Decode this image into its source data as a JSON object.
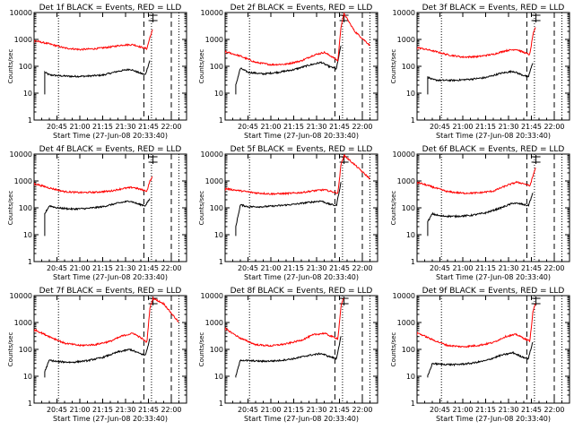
{
  "figure": {
    "colors": {
      "events": "#000000",
      "lld": "#ff0000",
      "background": "#ffffff"
    },
    "x_tick_labels": [
      "20:45",
      "21:00",
      "21:15",
      "21:30",
      "21:45",
      "22:00"
    ],
    "y_tick_labels": [
      "1",
      "10",
      "100",
      "1000",
      "10000"
    ],
    "x_axis_label": "Start Time (27-Jun-08 20:33:40)",
    "y_axis_label": "Counts/sec"
  },
  "chart_data": [
    {
      "type": "line",
      "title": "Det 1f BLACK = Events, RED = LLD",
      "xlabel": "Start Time (27-Jun-08 20:33:40)",
      "ylabel": "Counts/sec",
      "y_scale": "log",
      "ylim": [
        1,
        10000
      ],
      "x_ticks": [
        "20:45",
        "21:00",
        "21:15",
        "21:30",
        "21:45",
        "22:00"
      ],
      "grid": false,
      "series": [
        {
          "name": "Events",
          "color": "#000000",
          "start": "20:37",
          "x": [
            "20:37",
            "20:40",
            "20:45",
            "20:55",
            "21:05",
            "21:15",
            "21:25",
            "21:33",
            "21:38",
            "21:43",
            "21:46"
          ],
          "y": [
            60,
            48,
            45,
            42,
            43,
            47,
            65,
            78,
            60,
            48,
            170
          ]
        },
        {
          "name": "LLD",
          "color": "#ff0000",
          "start": "20:30",
          "x": [
            "20:30",
            "20:40",
            "20:50",
            "21:00",
            "21:10",
            "21:20",
            "21:28",
            "21:35",
            "21:40",
            "21:44",
            "21:46",
            "21:48"
          ],
          "y": [
            900,
            680,
            480,
            420,
            450,
            520,
            620,
            640,
            520,
            450,
            1200,
            2500
          ]
        }
      ],
      "markers": {
        "dotted": [
          "20:46",
          "21:47",
          "22:05"
        ],
        "dashed": [
          "21:42",
          "22:00"
        ],
        "error_bar": "21:48"
      }
    },
    {
      "type": "line",
      "title": "Det 2f BLACK = Events, RED = LLD",
      "xlabel": "Start Time (27-Jun-08 20:33:40)",
      "ylabel": "Counts/sec",
      "y_scale": "log",
      "ylim": [
        1,
        10000
      ],
      "x_ticks": [
        "20:45",
        "21:00",
        "21:15",
        "21:30",
        "21:45",
        "22:00"
      ],
      "grid": false,
      "series": [
        {
          "name": "Events",
          "color": "#000000",
          "start": "20:37",
          "x": [
            "20:37",
            "20:40",
            "20:45",
            "20:55",
            "21:05",
            "21:15",
            "21:25",
            "21:33",
            "21:38",
            "21:43",
            "21:46"
          ],
          "y": [
            20,
            85,
            60,
            52,
            60,
            75,
            110,
            140,
            100,
            80,
            600
          ]
        },
        {
          "name": "LLD",
          "color": "#ff0000",
          "start": "20:30",
          "x": [
            "20:30",
            "20:40",
            "20:50",
            "21:00",
            "21:10",
            "21:20",
            "21:28",
            "21:35",
            "21:40",
            "21:44",
            "21:46",
            "21:48",
            "21:55",
            "22:05"
          ],
          "y": [
            350,
            240,
            140,
            115,
            120,
            160,
            260,
            330,
            230,
            160,
            3000,
            9000,
            2000,
            600
          ]
        }
      ],
      "markers": {
        "dotted": [
          "20:46",
          "21:47",
          "22:05"
        ],
        "dashed": [
          "21:42",
          "22:00"
        ],
        "error_bar": "21:48"
      }
    },
    {
      "type": "line",
      "title": "Det 3f BLACK = Events, RED = LLD",
      "xlabel": "Start Time (27-Jun-08 20:33:40)",
      "ylabel": "Counts/sec",
      "y_scale": "log",
      "ylim": [
        1,
        10000
      ],
      "x_ticks": [
        "20:45",
        "21:00",
        "21:15",
        "21:30",
        "21:45",
        "22:00"
      ],
      "grid": false,
      "series": [
        {
          "name": "Events",
          "color": "#000000",
          "start": "20:37",
          "x": [
            "20:37",
            "20:40",
            "20:45",
            "20:55",
            "21:05",
            "21:15",
            "21:25",
            "21:33",
            "21:38",
            "21:43",
            "21:46"
          ],
          "y": [
            40,
            32,
            30,
            30,
            33,
            38,
            55,
            65,
            50,
            40,
            140
          ]
        },
        {
          "name": "LLD",
          "color": "#ff0000",
          "start": "20:30",
          "x": [
            "20:30",
            "20:40",
            "20:50",
            "21:00",
            "21:10",
            "21:20",
            "21:28",
            "21:35",
            "21:40",
            "21:44",
            "21:46",
            "21:48"
          ],
          "y": [
            500,
            380,
            270,
            220,
            230,
            280,
            380,
            430,
            330,
            270,
            1500,
            3000
          ]
        }
      ],
      "markers": {
        "dotted": [
          "20:46",
          "21:47",
          "22:05"
        ],
        "dashed": [
          "21:42",
          "22:00"
        ],
        "error_bar": "21:48"
      }
    },
    {
      "type": "line",
      "title": "Det 4f BLACK = Events, RED = LLD",
      "xlabel": "Start Time (27-Jun-08 20:33:40)",
      "ylabel": "Counts/sec",
      "y_scale": "log",
      "ylim": [
        1,
        10000
      ],
      "x_ticks": [
        "20:45",
        "21:00",
        "21:15",
        "21:30",
        "21:45",
        "22:00"
      ],
      "grid": false,
      "series": [
        {
          "name": "Events",
          "color": "#000000",
          "start": "20:37",
          "x": [
            "20:37",
            "20:40",
            "20:45",
            "20:55",
            "21:05",
            "21:15",
            "21:25",
            "21:33",
            "21:38",
            "21:43",
            "21:46"
          ],
          "y": [
            60,
            120,
            100,
            90,
            95,
            110,
            150,
            180,
            140,
            120,
            220
          ]
        },
        {
          "name": "LLD",
          "color": "#ff0000",
          "start": "20:30",
          "x": [
            "20:30",
            "20:40",
            "20:50",
            "21:00",
            "21:10",
            "21:20",
            "21:28",
            "21:35",
            "21:40",
            "21:44",
            "21:46",
            "21:48"
          ],
          "y": [
            800,
            550,
            400,
            370,
            380,
            420,
            520,
            580,
            480,
            420,
            1000,
            1500
          ]
        }
      ],
      "markers": {
        "dotted": [
          "20:46",
          "21:47",
          "22:05"
        ],
        "dashed": [
          "21:42",
          "22:00"
        ],
        "error_bar": "21:48"
      }
    },
    {
      "type": "line",
      "title": "Det 5f BLACK = Events, RED = LLD",
      "xlabel": "Start Time (27-Jun-08 20:33:40)",
      "ylabel": "Counts/sec",
      "y_scale": "log",
      "ylim": [
        1,
        10000
      ],
      "x_ticks": [
        "20:45",
        "21:00",
        "21:15",
        "21:30",
        "21:45",
        "22:00"
      ],
      "grid": false,
      "series": [
        {
          "name": "Events",
          "color": "#000000",
          "start": "20:37",
          "x": [
            "20:37",
            "20:40",
            "20:45",
            "20:55",
            "21:05",
            "21:15",
            "21:25",
            "21:33",
            "21:38",
            "21:43",
            "21:46"
          ],
          "y": [
            20,
            130,
            110,
            110,
            120,
            135,
            160,
            180,
            140,
            120,
            900
          ]
        },
        {
          "name": "LLD",
          "color": "#ff0000",
          "start": "20:30",
          "x": [
            "20:30",
            "20:40",
            "20:50",
            "21:00",
            "21:10",
            "21:20",
            "21:28",
            "21:35",
            "21:40",
            "21:44",
            "21:46",
            "21:48",
            "21:55",
            "22:05"
          ],
          "y": [
            520,
            430,
            360,
            330,
            340,
            370,
            430,
            470,
            400,
            350,
            4000,
            9000,
            4000,
            1200
          ]
        }
      ],
      "markers": {
        "dotted": [
          "20:46",
          "21:47",
          "22:05"
        ],
        "dashed": [
          "21:42",
          "22:00"
        ],
        "error_bar": "21:48"
      }
    },
    {
      "type": "line",
      "title": "Det 6f BLACK = Events, RED = LLD",
      "xlabel": "Start Time (27-Jun-08 20:33:40)",
      "ylabel": "Counts/sec",
      "y_scale": "log",
      "ylim": [
        1,
        10000
      ],
      "x_ticks": [
        "20:45",
        "21:00",
        "21:15",
        "21:30",
        "21:45",
        "22:00"
      ],
      "grid": false,
      "series": [
        {
          "name": "Events",
          "color": "#000000",
          "start": "20:37",
          "x": [
            "20:37",
            "20:40",
            "20:45",
            "20:55",
            "21:05",
            "21:15",
            "21:25",
            "21:33",
            "21:38",
            "21:43",
            "21:46"
          ],
          "y": [
            30,
            60,
            50,
            48,
            52,
            65,
            100,
            150,
            140,
            120,
            350
          ]
        },
        {
          "name": "LLD",
          "color": "#ff0000",
          "start": "20:30",
          "x": [
            "20:30",
            "20:40",
            "20:50",
            "21:00",
            "21:10",
            "21:20",
            "21:28",
            "21:35",
            "21:40",
            "21:44",
            "21:46",
            "21:48"
          ],
          "y": [
            900,
            600,
            400,
            350,
            360,
            420,
            650,
            900,
            800,
            650,
            1500,
            3500
          ]
        }
      ],
      "markers": {
        "dotted": [
          "20:46",
          "21:47",
          "22:05"
        ],
        "dashed": [
          "21:42",
          "22:00"
        ],
        "error_bar": "21:48"
      }
    },
    {
      "type": "line",
      "title": "Det 7f BLACK = Events, RED = LLD",
      "xlabel": "Start Time (27-Jun-08 20:33:40)",
      "ylabel": "Counts/sec",
      "y_scale": "log",
      "ylim": [
        1,
        10000
      ],
      "x_ticks": [
        "20:45",
        "21:00",
        "21:15",
        "21:30",
        "21:45",
        "22:00"
      ],
      "grid": false,
      "series": [
        {
          "name": "Events",
          "color": "#000000",
          "start": "20:37",
          "x": [
            "20:37",
            "20:40",
            "20:45",
            "20:55",
            "21:05",
            "21:15",
            "21:25",
            "21:33",
            "21:38",
            "21:43",
            "21:46"
          ],
          "y": [
            15,
            40,
            35,
            33,
            38,
            50,
            80,
            100,
            75,
            60,
            250
          ]
        },
        {
          "name": "LLD",
          "color": "#ff0000",
          "start": "20:30",
          "x": [
            "20:30",
            "20:40",
            "20:50",
            "21:00",
            "21:10",
            "21:20",
            "21:28",
            "21:35",
            "21:40",
            "21:44",
            "21:46",
            "21:48",
            "21:55",
            "22:05"
          ],
          "y": [
            550,
            300,
            170,
            140,
            150,
            200,
            320,
            400,
            270,
            180,
            3500,
            8000,
            5000,
            1000
          ]
        }
      ],
      "markers": {
        "dotted": [
          "20:46",
          "21:47",
          "22:05"
        ],
        "dashed": [
          "21:42",
          "22:00"
        ],
        "error_bar": "21:48"
      }
    },
    {
      "type": "line",
      "title": "Det 8f BLACK = Events, RED = LLD",
      "xlabel": "Start Time (27-Jun-08 20:33:40)",
      "ylabel": "Counts/sec",
      "y_scale": "log",
      "ylim": [
        1,
        10000
      ],
      "x_ticks": [
        "20:45",
        "21:00",
        "21:15",
        "21:30",
        "21:45",
        "22:00"
      ],
      "grid": false,
      "series": [
        {
          "name": "Events",
          "color": "#000000",
          "start": "20:37",
          "x": [
            "20:37",
            "20:40",
            "20:45",
            "20:55",
            "21:05",
            "21:15",
            "21:25",
            "21:33",
            "21:38",
            "21:43",
            "21:46"
          ],
          "y": [
            10,
            40,
            38,
            36,
            38,
            45,
            60,
            70,
            55,
            45,
            300
          ]
        },
        {
          "name": "LLD",
          "color": "#ff0000",
          "start": "20:30",
          "x": [
            "20:30",
            "20:40",
            "20:50",
            "21:00",
            "21:10",
            "21:20",
            "21:28",
            "21:35",
            "21:40",
            "21:44",
            "21:46",
            "21:48"
          ],
          "y": [
            600,
            260,
            150,
            135,
            160,
            220,
            350,
            400,
            300,
            250,
            4000,
            9000
          ]
        }
      ],
      "markers": {
        "dotted": [
          "20:46",
          "21:47",
          "22:05"
        ],
        "dashed": [
          "21:42",
          "22:00"
        ],
        "error_bar": "21:48"
      }
    },
    {
      "type": "line",
      "title": "Det 9f BLACK = Events, RED = LLD",
      "xlabel": "Start Time (27-Jun-08 20:33:40)",
      "ylabel": "Counts/sec",
      "y_scale": "log",
      "ylim": [
        1,
        10000
      ],
      "x_ticks": [
        "20:45",
        "21:00",
        "21:15",
        "21:30",
        "21:45",
        "22:00"
      ],
      "grid": false,
      "series": [
        {
          "name": "Events",
          "color": "#000000",
          "start": "20:37",
          "x": [
            "20:37",
            "20:40",
            "20:45",
            "20:55",
            "21:05",
            "21:15",
            "21:25",
            "21:33",
            "21:38",
            "21:43",
            "21:46"
          ],
          "y": [
            10,
            30,
            28,
            27,
            30,
            38,
            60,
            75,
            55,
            45,
            200
          ]
        },
        {
          "name": "LLD",
          "color": "#ff0000",
          "start": "20:30",
          "x": [
            "20:30",
            "20:40",
            "20:50",
            "21:00",
            "21:10",
            "21:20",
            "21:28",
            "21:35",
            "21:40",
            "21:44",
            "21:46",
            "21:48"
          ],
          "y": [
            420,
            230,
            140,
            125,
            140,
            180,
            300,
            360,
            260,
            200,
            2500,
            6000
          ]
        }
      ],
      "markers": {
        "dotted": [
          "20:46",
          "21:47",
          "22:05"
        ],
        "dashed": [
          "21:42",
          "22:00"
        ],
        "error_bar": "21:48"
      }
    }
  ]
}
